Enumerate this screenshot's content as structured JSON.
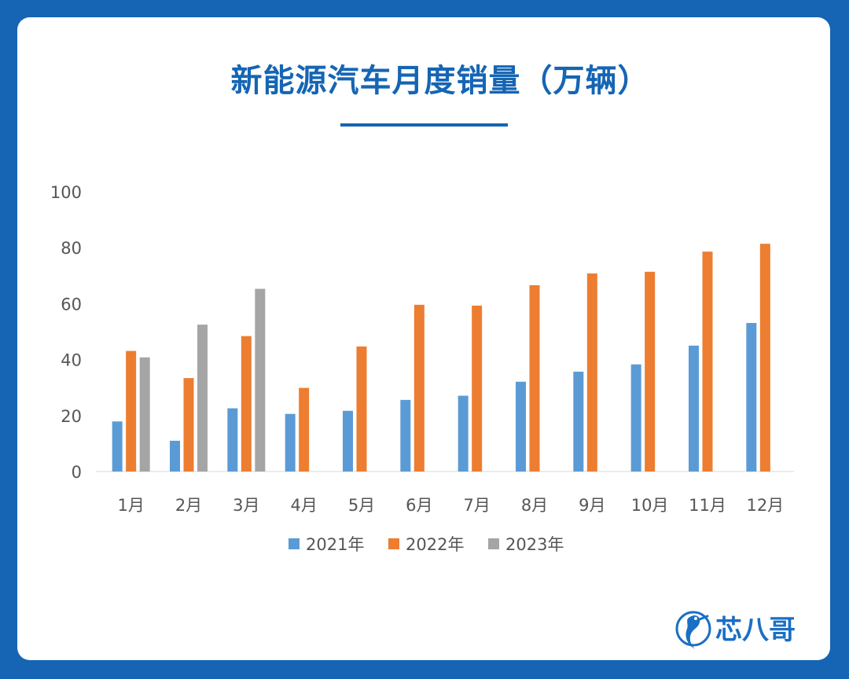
{
  "title": "新能源汽车月度销量（万辆）",
  "colors": {
    "background": "#1565b4",
    "title": "#1565b4",
    "series_2021": "#5b9bd5",
    "series_2022": "#ed7d31",
    "series_2023": "#a5a5a5"
  },
  "logo": {
    "text": "芯八哥",
    "icon": "bird-logo-icon"
  },
  "chart_data": {
    "type": "bar",
    "title": "新能源汽车月度销量（万辆）",
    "xlabel": "",
    "ylabel": "",
    "ylim": [
      0,
      100
    ],
    "yticks": [
      0,
      20,
      40,
      60,
      80,
      100
    ],
    "grid": false,
    "legend_position": "bottom",
    "categories": [
      "1月",
      "2月",
      "3月",
      "4月",
      "5月",
      "6月",
      "7月",
      "8月",
      "9月",
      "10月",
      "11月",
      "12月"
    ],
    "series": [
      {
        "name": "2021年",
        "values": [
          17.9,
          11.0,
          22.6,
          20.6,
          21.7,
          25.6,
          27.1,
          32.1,
          35.7,
          38.3,
          45.0,
          53.1
        ]
      },
      {
        "name": "2022年",
        "values": [
          43.1,
          33.4,
          48.4,
          29.9,
          44.7,
          59.6,
          59.3,
          66.6,
          70.8,
          71.4,
          78.6,
          81.4
        ]
      },
      {
        "name": "2023年",
        "values": [
          40.8,
          52.5,
          65.3,
          null,
          null,
          null,
          null,
          null,
          null,
          null,
          null,
          null
        ]
      }
    ]
  }
}
